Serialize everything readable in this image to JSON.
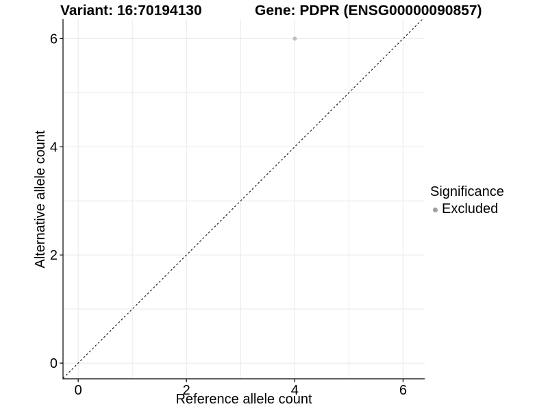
{
  "chart_data": {
    "type": "scatter",
    "title_left": "Variant: 16:70194130",
    "title_right": "Gene: PDPR (ENSG00000090857)",
    "xlabel": "Reference allele count",
    "ylabel": "Alternative allele count",
    "xlim": [
      -0.28,
      6.4
    ],
    "ylim": [
      -0.29,
      6.36
    ],
    "xticks": [
      0,
      2,
      4,
      6
    ],
    "yticks": [
      0,
      2,
      4,
      6
    ],
    "gridline_values_x": [
      0,
      1,
      2,
      3,
      4,
      5,
      6
    ],
    "gridline_values_y": [
      0,
      1,
      2,
      3,
      4,
      5,
      6
    ],
    "grid": true,
    "points": [
      {
        "x": 4,
        "y": 6,
        "series": "Excluded"
      }
    ],
    "series": [
      {
        "name": "Excluded",
        "color": "#bfbfbf"
      }
    ],
    "identity_line": {
      "type": "abline",
      "slope": 1,
      "intercept": 0,
      "style": "dashed",
      "color": "#000000"
    },
    "legend": {
      "title": "Significance",
      "position": "right",
      "items": [
        {
          "label": "Excluded",
          "color": "#9e9e9e"
        }
      ]
    }
  },
  "colors": {
    "background": "#ffffff",
    "grid": "#e8e8e8",
    "axis": "#000000",
    "text": "#000000",
    "point": "#bfbfbf"
  }
}
